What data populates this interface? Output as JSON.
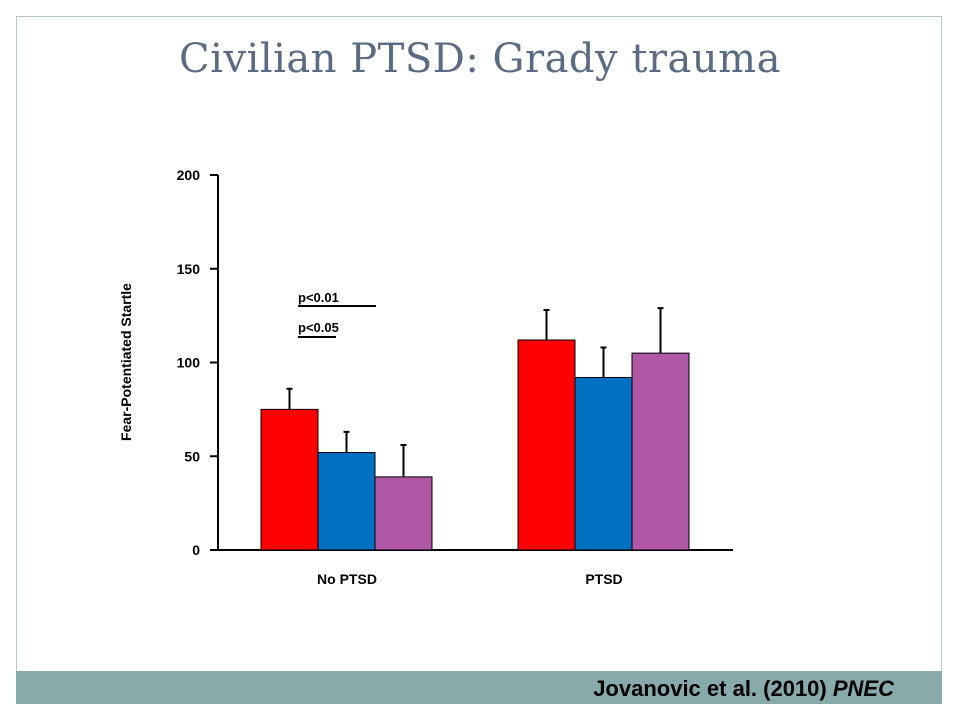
{
  "slide": {
    "title": "Civilian PTSD: Grady trauma",
    "citation_authors": "Jovanovic et al. (2010)",
    "citation_journal": "PNEC"
  },
  "colors": {
    "frame_border": "#b9c9c9",
    "footer_bar": "#88aaaa",
    "title": "#5b6b83"
  },
  "chart_data": {
    "type": "bar",
    "ylabel": "Fear-Potentiated Startle",
    "xlabel": "",
    "ylim": [
      0,
      200
    ],
    "yticks": [
      0,
      50,
      100,
      150,
      200
    ],
    "categories": [
      "No PTSD",
      "PTSD"
    ],
    "series": [
      {
        "color": "#ff0000",
        "values": [
          75,
          112
        ],
        "errors": [
          11,
          16
        ]
      },
      {
        "color": "#0070c0",
        "values": [
          52,
          92
        ],
        "errors": [
          11,
          16
        ]
      },
      {
        "color": "#b058a6",
        "values": [
          39,
          105
        ],
        "errors": [
          17,
          24
        ]
      }
    ],
    "annotations": [
      {
        "text": "p<0.01"
      },
      {
        "text": "p<0.05"
      }
    ],
    "grid": false,
    "legend": "none"
  }
}
